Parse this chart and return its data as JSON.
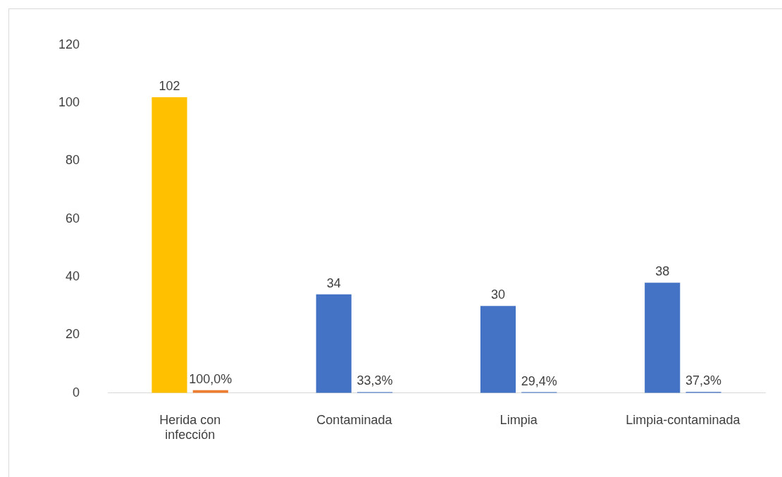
{
  "chart_data": {
    "type": "bar",
    "categories": [
      "Herida con infección",
      "Contaminada",
      "Limpia",
      "Limpia-contaminada"
    ],
    "series": [
      {
        "colors": [
          "#ffc000",
          "#4472c4",
          "#4472c4",
          "#4472c4"
        ],
        "values": [
          102,
          34,
          30,
          38
        ],
        "value_labels": [
          "102",
          "34",
          "30",
          "38"
        ]
      },
      {
        "colors": [
          "#ed7d31",
          "#4472c4",
          "#4472c4",
          "#4472c4"
        ],
        "values": [
          1,
          0.333,
          0.294,
          0.373
        ],
        "value_labels": [
          "100,0%",
          "33,3%",
          "29,4%",
          "37,3%"
        ]
      }
    ],
    "ylim": [
      0,
      120
    ],
    "yticks": [
      0,
      20,
      40,
      60,
      80,
      100,
      120
    ],
    "grid": false,
    "legend": false
  }
}
